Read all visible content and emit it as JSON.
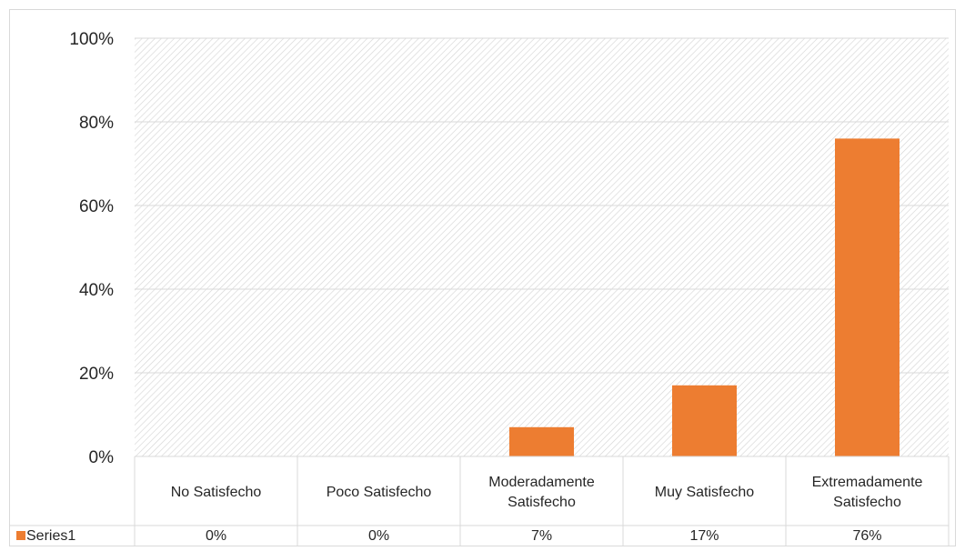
{
  "chart_data": {
    "type": "bar",
    "categories": [
      [
        "No Satisfecho"
      ],
      [
        "Poco Satisfecho"
      ],
      [
        "Moderadamente",
        "Satisfecho"
      ],
      [
        "Muy Satisfecho"
      ],
      [
        "Extremadamente",
        "Satisfecho"
      ]
    ],
    "series": [
      {
        "name": "Series1",
        "values": [
          0,
          0,
          0.07,
          0.17,
          0.76
        ],
        "value_labels": [
          "0%",
          "0%",
          "7%",
          "17%",
          "76%"
        ],
        "color": "#ED7D31"
      }
    ],
    "ylim": [
      0,
      1
    ],
    "yticks": [
      0,
      0.2,
      0.4,
      0.6,
      0.8,
      1.0
    ],
    "ytick_labels": [
      "0%",
      "20%",
      "40%",
      "60%",
      "80%",
      "100%"
    ],
    "grid": true,
    "data_table": true,
    "legend": "data-table"
  }
}
